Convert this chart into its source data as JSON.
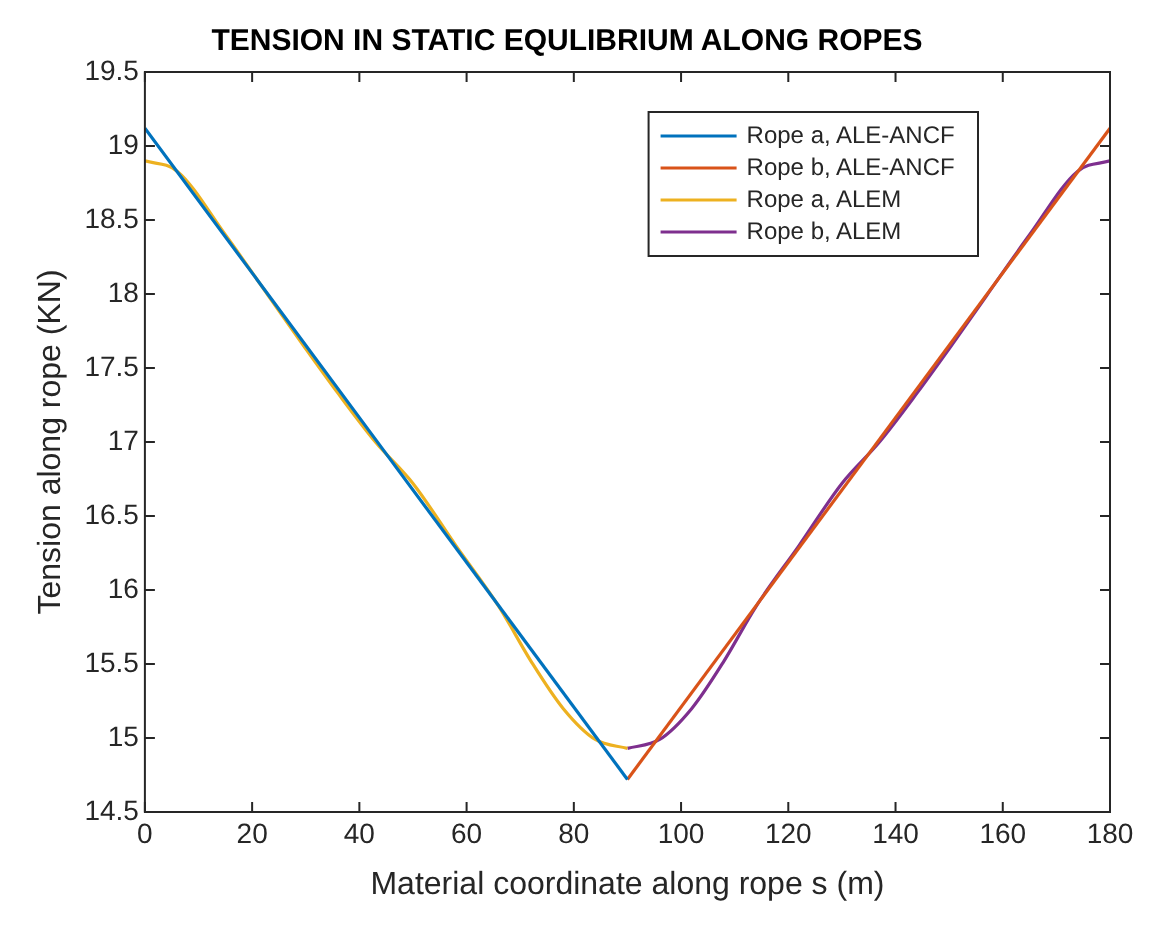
{
  "chart_data": {
    "type": "line",
    "title": "TENSION IN STATIC EQULIBRIUM ALONG ROPES",
    "xlabel": "Material coordinate along rope s (m)",
    "ylabel": "Tension along rope (KN)",
    "xlim": [
      0,
      180
    ],
    "xticks": [
      0,
      20,
      40,
      60,
      80,
      100,
      120,
      140,
      160,
      180
    ],
    "ylim": [
      14.5,
      19.5
    ],
    "yticks": [
      14.5,
      15,
      15.5,
      16,
      16.5,
      17,
      17.5,
      18,
      18.5,
      19,
      19.5
    ],
    "grid": false,
    "legend": "top right",
    "marker": "none",
    "line_style": "solid",
    "series": [
      {
        "name": "Rope a, ALE-ANCF",
        "color": "#0072bd",
        "x": [
          0,
          90
        ],
        "values": [
          19.12,
          14.72
        ]
      },
      {
        "name": "Rope b, ALE-ANCF",
        "color": "#d95319",
        "x": [
          90,
          180
        ],
        "values": [
          14.72,
          19.12
        ]
      },
      {
        "name": "Rope a, ALEM",
        "color": "#edb120",
        "x": [
          0,
          6,
          15,
          23,
          30,
          36,
          43,
          50,
          58,
          66,
          72,
          78,
          84,
          90
        ],
        "values": [
          18.9,
          18.83,
          18.4,
          17.99,
          17.63,
          17.33,
          17.0,
          16.72,
          16.3,
          15.89,
          15.52,
          15.2,
          14.99,
          14.93
        ]
      },
      {
        "name": "Rope b, ALEM",
        "color": "#7e2f8e",
        "x": [
          90,
          96,
          102,
          108,
          114,
          122,
          130,
          137,
          144,
          150,
          157,
          165,
          174,
          180
        ],
        "values": [
          14.93,
          14.99,
          15.2,
          15.52,
          15.89,
          16.3,
          16.72,
          17.0,
          17.33,
          17.63,
          17.99,
          18.4,
          18.83,
          18.9
        ]
      }
    ]
  }
}
